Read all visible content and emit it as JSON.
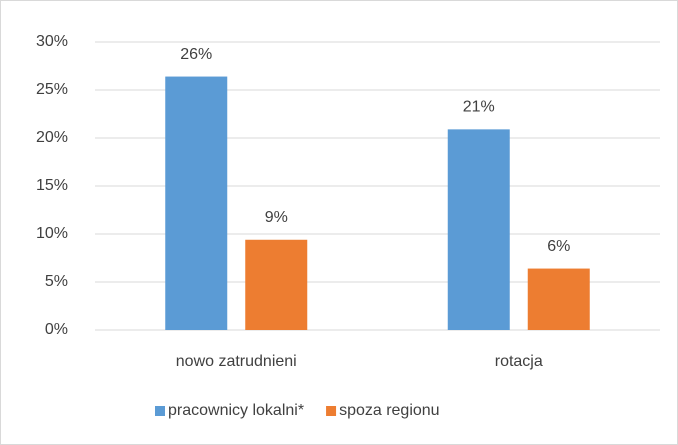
{
  "chart_data": {
    "type": "bar",
    "categories": [
      "nowo zatrudnieni",
      "rotacja"
    ],
    "series": [
      {
        "name": "pracownicy lokalni*",
        "color": "#5b9bd5",
        "values": [
          26.4,
          20.9
        ],
        "value_labels": [
          "26%",
          "21%"
        ]
      },
      {
        "name": "spoza regionu",
        "color": "#ed7d31",
        "values": [
          9.4,
          6.4
        ],
        "value_labels": [
          "9%",
          "6%"
        ]
      }
    ],
    "ylim": [
      0,
      30
    ],
    "yticks": [
      {
        "value": 0,
        "label": "0%"
      },
      {
        "value": 5,
        "label": "5%"
      },
      {
        "value": 10,
        "label": "10%"
      },
      {
        "value": 15,
        "label": "15%"
      },
      {
        "value": 20,
        "label": "20%"
      },
      {
        "value": 25,
        "label": "25%"
      },
      {
        "value": 30,
        "label": "30%"
      }
    ],
    "grid": true,
    "legend": "bottom"
  }
}
